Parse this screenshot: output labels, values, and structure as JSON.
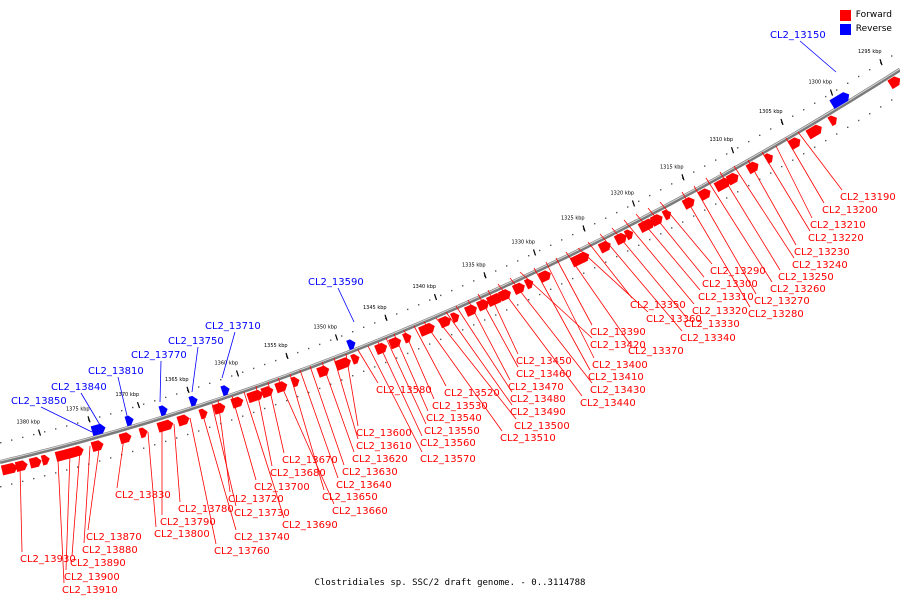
{
  "caption": "Clostridiales sp. SSC/2 draft genome. - 0..3114788",
  "legend": {
    "forward": {
      "label": "Forward",
      "color": "#ff0000"
    },
    "reverse": {
      "label": "Reverse",
      "color": "#0000ff"
    }
  },
  "colors": {
    "forward": "#ff0000",
    "reverse": "#0000ff",
    "backbone": "#7a7a7a"
  },
  "ticks": [
    "1295 kbp",
    "1300 kbp",
    "1305 kbp",
    "1310 kbp",
    "1315 kbp",
    "1320 kbp",
    "1325 kbp",
    "1330 kbp",
    "1335 kbp",
    "1340 kbp",
    "1345 kbp",
    "1350 kbp",
    "1355 kbp",
    "1360 kbp",
    "1365 kbp",
    "1370 kbp",
    "1375 kbp",
    "1380 kbp"
  ],
  "reverse_genes": [
    "CL2_13150",
    "CL2_13590",
    "CL2_13710",
    "CL2_13750",
    "CL2_13770",
    "CL2_13810",
    "CL2_13840",
    "CL2_13850"
  ],
  "forward_genes": [
    "CL2_13190",
    "CL2_13200",
    "CL2_13210",
    "CL2_13220",
    "CL2_13230",
    "CL2_13240",
    "CL2_13250",
    "CL2_13260",
    "CL2_13270",
    "CL2_13280",
    "CL2_13290",
    "CL2_13300",
    "CL2_13310",
    "CL2_13320",
    "CL2_13330",
    "CL2_13340",
    "CL2_13350",
    "CL2_13360",
    "CL2_13370",
    "CL2_13390",
    "CL2_13400",
    "CL2_13410",
    "CL2_13420",
    "CL2_13430",
    "CL2_13440",
    "CL2_13450",
    "CL2_13460",
    "CL2_13470",
    "CL2_13480",
    "CL2_13490",
    "CL2_13500",
    "CL2_13510",
    "CL2_13520",
    "CL2_13530",
    "CL2_13540",
    "CL2_13550",
    "CL2_13560",
    "CL2_13570",
    "CL2_13580",
    "CL2_13600",
    "CL2_13610",
    "CL2_13620",
    "CL2_13630",
    "CL2_13640",
    "CL2_13650",
    "CL2_13660",
    "CL2_13670",
    "CL2_13680",
    "CL2_13690",
    "CL2_13700",
    "CL2_13720",
    "CL2_13730",
    "CL2_13740",
    "CL2_13760",
    "CL2_13780",
    "CL2_13790",
    "CL2_13800",
    "CL2_13830",
    "CL2_13870",
    "CL2_13880",
    "CL2_13890",
    "CL2_13900",
    "CL2_13910",
    "CL2_13930"
  ]
}
